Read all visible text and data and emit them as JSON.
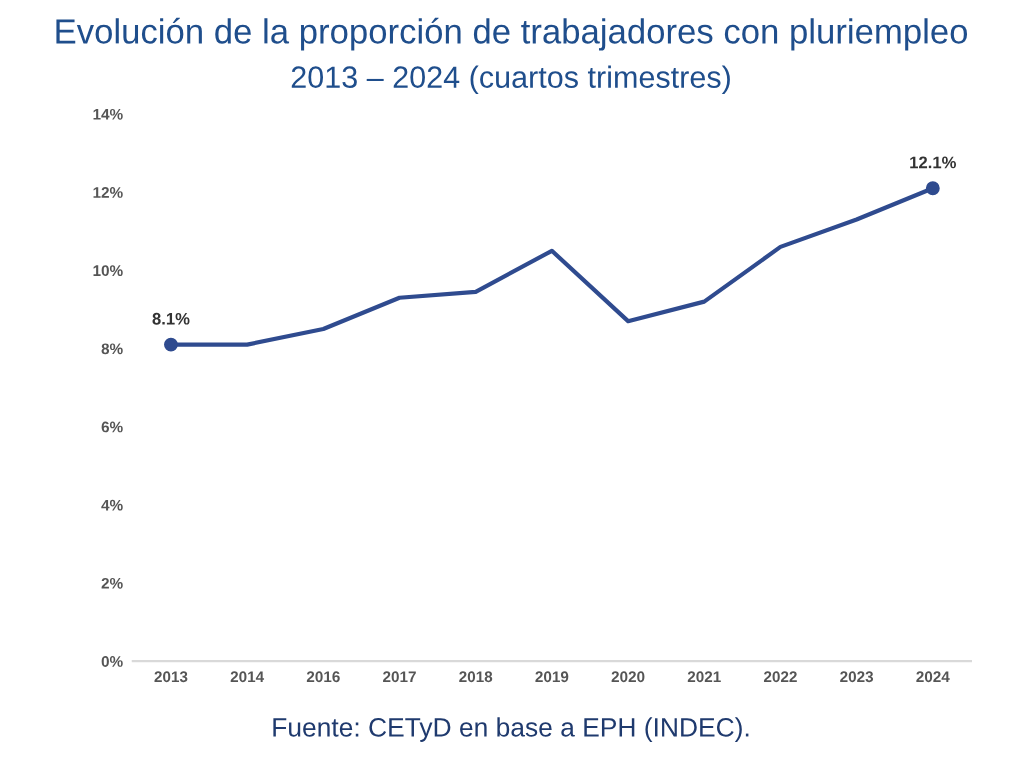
{
  "chart_data": {
    "type": "line",
    "title": "Evolución de la proporción de trabajadores con pluriempleo",
    "subtitle": "2013 – 2024 (cuartos trimestres)",
    "categories": [
      "2013",
      "2014",
      "2016",
      "2017",
      "2018",
      "2019",
      "2020",
      "2021",
      "2022",
      "2023",
      "2024"
    ],
    "series": [
      {
        "color": "#2f4b8f",
        "values": [
          8.1,
          8.1,
          8.5,
          9.3,
          9.45,
          10.5,
          8.7,
          9.2,
          10.6,
          11.3,
          12.1
        ],
        "value_labels": [
          "8.1%",
          null,
          null,
          null,
          null,
          null,
          null,
          null,
          null,
          null,
          "12.1%"
        ]
      }
    ],
    "ylim": [
      0,
      14
    ],
    "yticks": [
      {
        "value": 0,
        "label": "0%"
      },
      {
        "value": 2,
        "label": "2%"
      },
      {
        "value": 4,
        "label": "4%"
      },
      {
        "value": 6,
        "label": "6%"
      },
      {
        "value": 8,
        "label": "8%"
      },
      {
        "value": 10,
        "label": "10%"
      },
      {
        "value": 12,
        "label": "12%"
      },
      {
        "value": 14,
        "label": "14%"
      }
    ],
    "grid": false,
    "legend": false,
    "annotations": [
      "Fuente: CETyD en base a EPH (INDEC)."
    ]
  }
}
